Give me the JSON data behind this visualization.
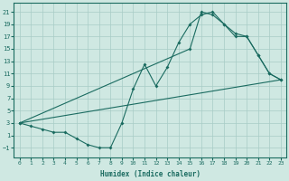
{
  "xlabel": "Humidex (Indice chaleur)",
  "xlim": [
    -0.5,
    23.5
  ],
  "ylim": [
    -2.5,
    22.5
  ],
  "yticks": [
    -1,
    1,
    3,
    5,
    7,
    9,
    11,
    13,
    15,
    17,
    19,
    21
  ],
  "xticks": [
    0,
    1,
    2,
    3,
    4,
    5,
    6,
    7,
    8,
    9,
    10,
    11,
    12,
    13,
    14,
    15,
    16,
    17,
    18,
    19,
    20,
    21,
    22,
    23
  ],
  "bg_color": "#cfe8e2",
  "grid_color": "#a8ccc6",
  "line_color": "#1a6b60",
  "line1_x": [
    0,
    1,
    2,
    3,
    4,
    5,
    6,
    7,
    8,
    9,
    10,
    11,
    12,
    13,
    14,
    15,
    16,
    17,
    18,
    19,
    20,
    21,
    22,
    23
  ],
  "line1_y": [
    3,
    2.5,
    2,
    1.5,
    1.5,
    0.5,
    -0.5,
    -1,
    -1,
    3,
    8.5,
    12.5,
    9,
    12,
    16,
    19,
    20.5,
    21,
    19,
    17.5,
    17,
    14,
    11,
    10
  ],
  "line2_x": [
    0,
    15,
    16,
    17,
    18,
    19,
    20,
    21,
    22,
    23
  ],
  "line2_y": [
    3,
    15,
    21,
    20.5,
    19,
    17,
    17,
    14,
    11,
    10
  ],
  "line3_x": [
    0,
    23
  ],
  "line3_y": [
    3,
    10
  ]
}
